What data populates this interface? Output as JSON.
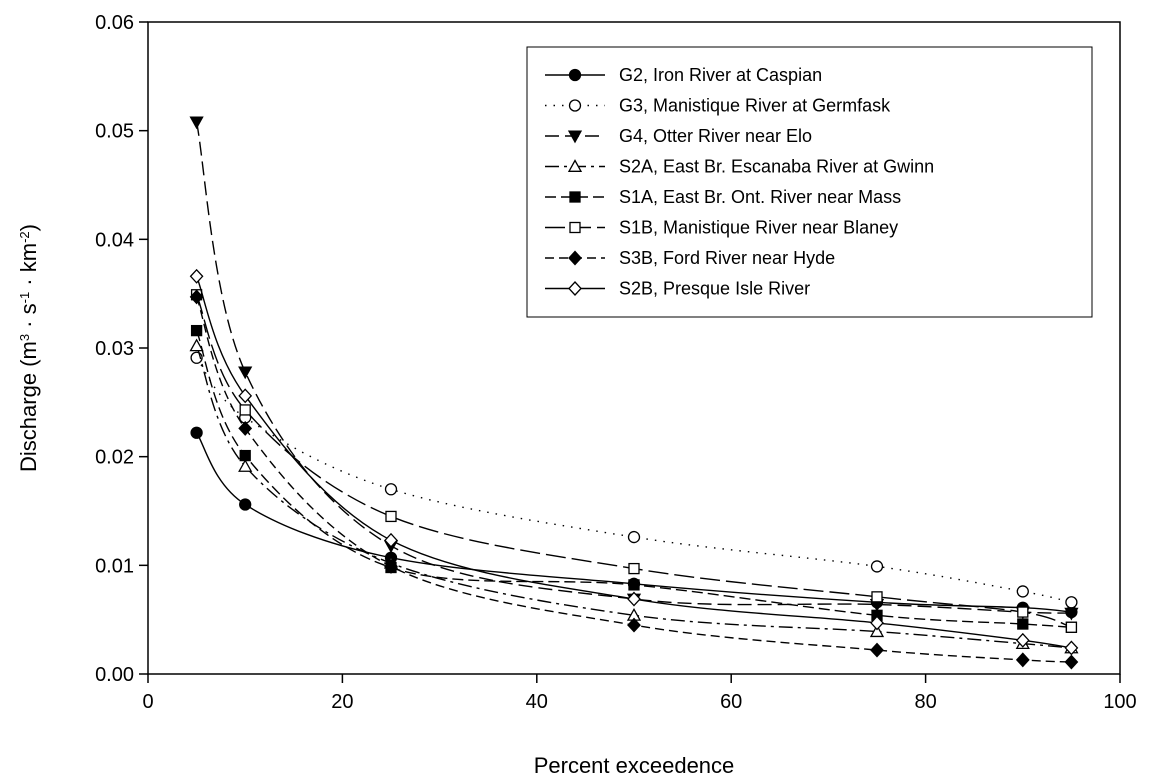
{
  "chart_data": {
    "type": "line",
    "xlabel": "Percent exceedence",
    "ylabel": {
      "prefix": "Discharge (m",
      "sup1": "3",
      "mid1": " · s",
      "sup2": "-1",
      "mid2": " · km",
      "sup3": "-2",
      "suffix": ")"
    },
    "xlim": [
      0,
      100
    ],
    "ylim": [
      0,
      0.06
    ],
    "xticks": [
      0,
      20,
      40,
      60,
      80,
      100
    ],
    "xtick_labels": [
      "0",
      "20",
      "40",
      "60",
      "80",
      "100"
    ],
    "yticks": [
      0,
      0.01,
      0.02,
      0.03,
      0.04,
      0.05,
      0.06
    ],
    "ytick_labels": [
      "0.00",
      "0.01",
      "0.02",
      "0.03",
      "0.04",
      "0.05",
      "0.06"
    ],
    "grid": false,
    "legend_position": "top-right",
    "x": [
      5,
      10,
      25,
      50,
      75,
      90,
      95
    ],
    "series": [
      {
        "name": "G2, Iron River at Caspian",
        "marker": "circle",
        "fill": "#000000",
        "dash": "",
        "color": "#000000",
        "values": [
          0.0222,
          0.0156,
          0.0107,
          0.0083,
          0.0066,
          0.0061,
          0.0057
        ]
      },
      {
        "name": "G3, Manistique River at Germfask",
        "marker": "circle",
        "fill": "#ffffff",
        "dash": "1.5,7",
        "color": "#000000",
        "values": [
          0.0291,
          0.0236,
          0.017,
          0.0126,
          0.0099,
          0.0076,
          0.0066
        ]
      },
      {
        "name": "G4, Otter River near Elo",
        "marker": "triangle-down",
        "fill": "#000000",
        "dash": "14,6",
        "color": "#000000",
        "values": [
          0.0508,
          0.0278,
          0.0118,
          0.0069,
          0.0064,
          0.0057,
          0.0056
        ]
      },
      {
        "name": "S2A, East Br. Escanaba River at Gwinn",
        "marker": "triangle-up",
        "fill": "#ffffff",
        "dash": "14,5,3,5",
        "color": "#000000",
        "values": [
          0.0302,
          0.0191,
          0.0102,
          0.0054,
          0.0039,
          0.0028,
          0.0024
        ]
      },
      {
        "name": "S1A, East Br. Ont. River near Mass",
        "marker": "square",
        "fill": "#000000",
        "dash": "11,5",
        "color": "#000000",
        "values": [
          0.0316,
          0.0201,
          0.0098,
          0.0082,
          0.0054,
          0.0046,
          0.0043
        ]
      },
      {
        "name": "S1B, Manistique River near Blaney",
        "marker": "square",
        "fill": "#ffffff",
        "dash": "20,6",
        "color": "#000000",
        "values": [
          0.0349,
          0.0243,
          0.0145,
          0.0097,
          0.0071,
          0.0057,
          0.0043
        ]
      },
      {
        "name": "S3B, Ford River near Hyde",
        "marker": "diamond",
        "fill": "#000000",
        "dash": "9,5",
        "color": "#000000",
        "values": [
          0.0347,
          0.0226,
          0.0099,
          0.0045,
          0.0022,
          0.0013,
          0.0011
        ]
      },
      {
        "name": "S2B, Presque Isle River",
        "marker": "diamond",
        "fill": "#ffffff",
        "dash": "",
        "color": "#000000",
        "values": [
          0.0366,
          0.0256,
          0.0123,
          0.0069,
          0.0047,
          0.0031,
          0.0024
        ]
      }
    ]
  }
}
